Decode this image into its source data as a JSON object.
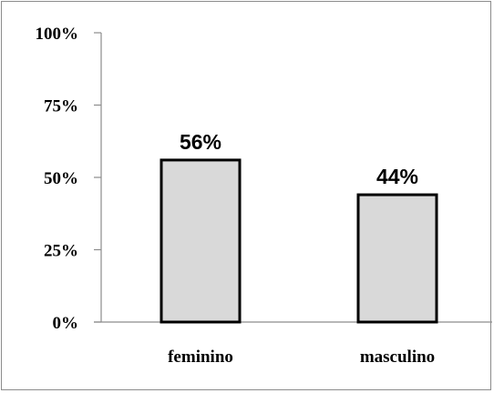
{
  "chart_data": {
    "type": "bar",
    "categories": [
      "feminino",
      "masculino"
    ],
    "values": [
      56,
      44
    ],
    "data_labels": [
      "56%",
      "44%"
    ],
    "title": "",
    "xlabel": "",
    "ylabel": "",
    "ylim": [
      0,
      100
    ],
    "yticks": [
      0,
      25,
      50,
      75,
      100
    ],
    "ytick_labels": [
      "0%",
      "25%",
      "50%",
      "75%",
      "100%"
    ],
    "grid": false,
    "legend": "none",
    "bar_fill": "#d9d9d9",
    "bar_stroke": "#000000"
  }
}
